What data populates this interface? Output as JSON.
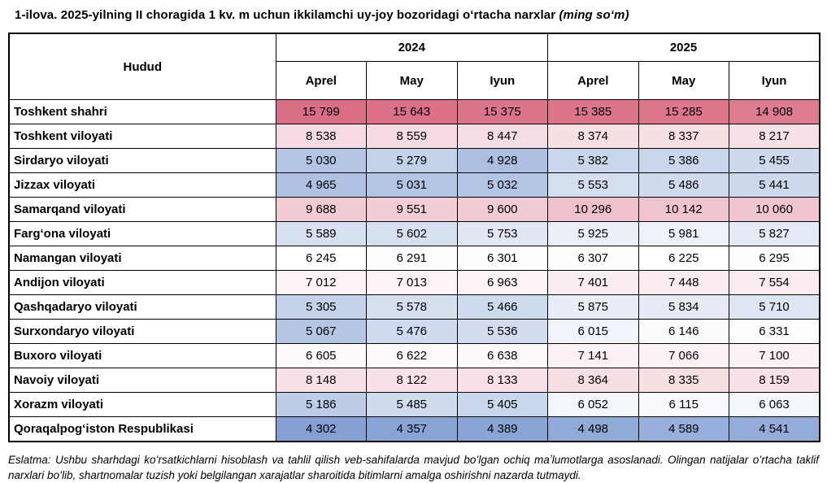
{
  "title": {
    "text": "1-ilova. 2025-yilning II choragida 1 kv. m uchun ikkilamchi uy-joy bozoridagi oʻrtacha narxlar",
    "note": "(ming soʻm)"
  },
  "table": {
    "region_header": "Hudud",
    "year_groups": [
      {
        "label": "2024",
        "months": [
          "Aprel",
          "May",
          "Iyun"
        ]
      },
      {
        "label": "2025",
        "months": [
          "Aprel",
          "May",
          "Iyun"
        ]
      }
    ],
    "rows": [
      {
        "region": "Toshkent shahri",
        "values": [
          "15 799",
          "15 643",
          "15 375",
          "15 385",
          "15 285",
          "14 908"
        ]
      },
      {
        "region": "Toshkent viloyati",
        "values": [
          "8 538",
          "8 559",
          "8 447",
          "8 374",
          "8 337",
          "8 217"
        ]
      },
      {
        "region": "Sirdaryo viloyati",
        "values": [
          "5 030",
          "5 279",
          "4 928",
          "5 382",
          "5 386",
          "5 455"
        ]
      },
      {
        "region": "Jizzax viloyati",
        "values": [
          "4 965",
          "5 031",
          "5 032",
          "5 553",
          "5 486",
          "5 441"
        ]
      },
      {
        "region": "Samarqand viloyati",
        "values": [
          "9 688",
          "9 551",
          "9 600",
          "10 296",
          "10 142",
          "10 060"
        ]
      },
      {
        "region": "Fargʻona viloyati",
        "values": [
          "5 589",
          "5 602",
          "5 753",
          "5 925",
          "5 981",
          "5 827"
        ]
      },
      {
        "region": "Namangan viloyati",
        "values": [
          "6 245",
          "6 291",
          "6 301",
          "6 307",
          "6 225",
          "6 295"
        ]
      },
      {
        "region": "Andijon viloyati",
        "values": [
          "7 012",
          "7 013",
          "6 963",
          "7 401",
          "7 448",
          "7 554"
        ]
      },
      {
        "region": "Qashqadaryo viloyati",
        "values": [
          "5 305",
          "5 578",
          "5 466",
          "5 875",
          "5 834",
          "5 710"
        ]
      },
      {
        "region": "Surxondaryo viloyati",
        "values": [
          "5 067",
          "5 476",
          "5 536",
          "6 015",
          "6 146",
          "6 331"
        ]
      },
      {
        "region": "Buxoro viloyati",
        "values": [
          "6 605",
          "6 622",
          "6 638",
          "7 141",
          "7 066",
          "7 100"
        ]
      },
      {
        "region": "Navoiy viloyati",
        "values": [
          "8 148",
          "8 122",
          "8 133",
          "8 364",
          "8 335",
          "8 159"
        ]
      },
      {
        "region": "Xorazm viloyati",
        "values": [
          "5 186",
          "5 485",
          "5 405",
          "6 052",
          "6 115",
          "6 063"
        ]
      },
      {
        "region": "Qoraqalpogʻiston Respublikasi",
        "values": [
          "4 302",
          "4 357",
          "4 389",
          "4 498",
          "4 589",
          "4 541"
        ]
      }
    ]
  },
  "heatmap": {
    "min_color": "#85A1D3",
    "mid_color": "#FFFFFF",
    "max_color": "#DA6E86"
  },
  "footnote": {
    "label": "Eslatma:",
    "text": "Ushbu sharhdagi koʻrsatkichlarni hisoblash va tahlil qilish veb-sahifalarda mavjud boʻlgan ochiq maʼlumotlarga asoslanadi. Olingan natijalar oʻrtacha taklif narxlari boʻlib, shartnomalar tuzish yoki belgilangan xarajatlar sharoitida bitimlarni amalga oshirishni nazarda tutmaydi."
  }
}
